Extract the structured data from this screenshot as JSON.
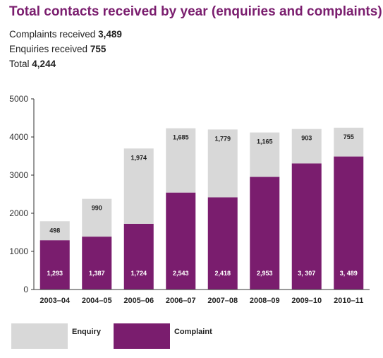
{
  "title": "Total contacts received by year (enquiries and complaints)",
  "summary": [
    {
      "label": "Complaints received",
      "value": "3,489"
    },
    {
      "label": "Enquiries received",
      "value": "755"
    },
    {
      "label": "Total",
      "value": "4,244"
    }
  ],
  "colors": {
    "enquiry": "#d8d8d8",
    "complaint": "#7a1d6e",
    "title": "#7a1d6e"
  },
  "legend": {
    "enquiry": "Enquiry",
    "complaint": "Complaint"
  },
  "chart_data": {
    "type": "bar",
    "stacked": true,
    "categories": [
      "2003–04",
      "2004–05",
      "2005–06",
      "2006–07",
      "2007–08",
      "2008–09",
      "2009–10",
      "2010–11"
    ],
    "series": [
      {
        "name": "Complaint",
        "values": [
          1293,
          1387,
          1724,
          2543,
          2418,
          2953,
          3307,
          3489
        ],
        "labels": [
          "1,293",
          "1,387",
          "1,724",
          "2,543",
          "2,418",
          "2,953",
          "3, 307",
          "3, 489"
        ]
      },
      {
        "name": "Enquiry",
        "values": [
          498,
          990,
          1974,
          1685,
          1779,
          1165,
          903,
          755
        ],
        "labels": [
          "498",
          "990",
          "1,974",
          "1,685",
          "1,779",
          "1,165",
          "903",
          "755"
        ]
      }
    ],
    "yticks": [
      "0",
      "1000",
      "2000",
      "3000",
      "4000",
      "5000"
    ],
    "ylim": [
      0,
      5000
    ],
    "grid": false,
    "legend_position": "bottom-left"
  }
}
